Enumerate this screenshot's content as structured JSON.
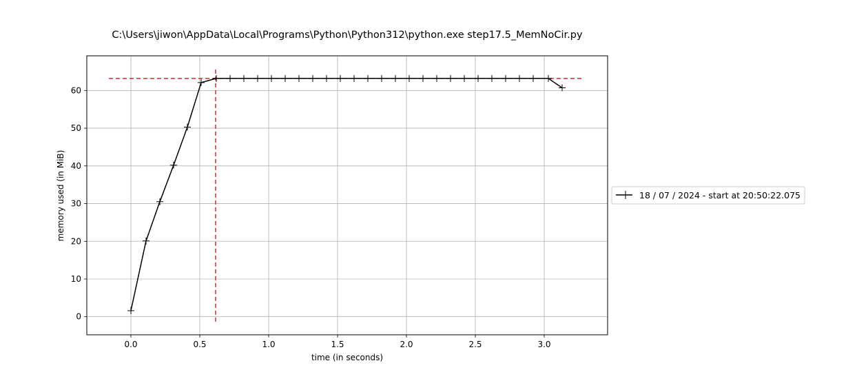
{
  "chart_data": {
    "type": "line",
    "title": "C:\\Users\\jiwon\\AppData\\Local\\Programs\\Python\\Python312\\python.exe step17.5_MemNoCir.py",
    "xlabel": "time (in seconds)",
    "ylabel": "memory used (in MiB)",
    "xlim": [
      -0.32,
      3.46
    ],
    "ylim": [
      -4.8,
      69.2
    ],
    "xticks": [
      0.0,
      0.5,
      1.0,
      1.5,
      2.0,
      2.5,
      3.0
    ],
    "xtick_labels": [
      "0.0",
      "0.5",
      "1.0",
      "1.5",
      "2.0",
      "2.5",
      "3.0"
    ],
    "yticks": [
      0,
      10,
      20,
      30,
      40,
      50,
      60
    ],
    "ytick_labels": [
      "0",
      "10",
      "20",
      "30",
      "40",
      "50",
      "60"
    ],
    "grid": true,
    "legend_position": "center-right-outside",
    "series": [
      {
        "name": "18 / 07 / 2024 - start at 20:50:22.075",
        "color": "#000000",
        "marker": "+",
        "x": [
          0.0,
          0.11,
          0.21,
          0.31,
          0.41,
          0.51,
          0.62,
          0.72,
          0.82,
          0.92,
          1.02,
          1.12,
          1.22,
          1.32,
          1.42,
          1.52,
          1.62,
          1.72,
          1.82,
          1.92,
          2.02,
          2.12,
          2.22,
          2.32,
          2.42,
          2.52,
          2.62,
          2.72,
          2.82,
          2.92,
          3.03,
          3.13
        ],
        "y": [
          1.6,
          20.1,
          30.5,
          40.2,
          50.3,
          62.1,
          63.2,
          63.2,
          63.2,
          63.2,
          63.2,
          63.2,
          63.2,
          63.2,
          63.2,
          63.2,
          63.2,
          63.2,
          63.2,
          63.2,
          63.2,
          63.2,
          63.2,
          63.2,
          63.2,
          63.2,
          63.2,
          63.2,
          63.2,
          63.2,
          63.2,
          60.7
        ]
      }
    ],
    "annotations": [
      {
        "kind": "hline",
        "y": 63.2,
        "x_range": [
          -0.16,
          3.28
        ],
        "color": "#d62728",
        "style": "dashed"
      },
      {
        "kind": "vline",
        "x": 0.615,
        "y_range": [
          -1.3,
          66.3
        ],
        "color": "#d62728",
        "style": "dashed"
      }
    ]
  }
}
